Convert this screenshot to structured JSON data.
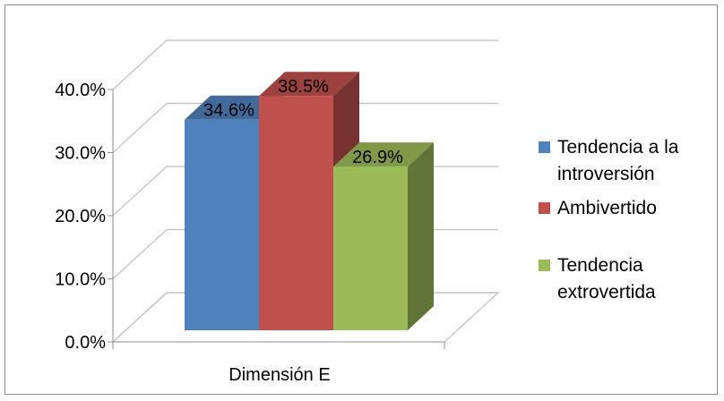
{
  "chart_data": {
    "type": "bar",
    "style": "3d-clustered-column",
    "title": "",
    "categories": [
      "Dimensión E"
    ],
    "series": [
      {
        "name": "Tendencia a la introversión",
        "values": [
          34.6
        ],
        "label": "34.6%",
        "color": "#4f81bd"
      },
      {
        "name": "Ambivertido",
        "values": [
          38.5
        ],
        "label": "38.5%",
        "color": "#c0504d"
      },
      {
        "name": "Tendencia extrovertida",
        "values": [
          26.9
        ],
        "label": "26.9%",
        "color": "#9bbb59"
      }
    ],
    "ylim": [
      0,
      40
    ],
    "yticks": [
      "0.0%",
      "10.0%",
      "20.0%",
      "30.0%",
      "40.0%"
    ],
    "xlabel": "",
    "ylabel": "",
    "grid": true,
    "legend_position": "right"
  }
}
